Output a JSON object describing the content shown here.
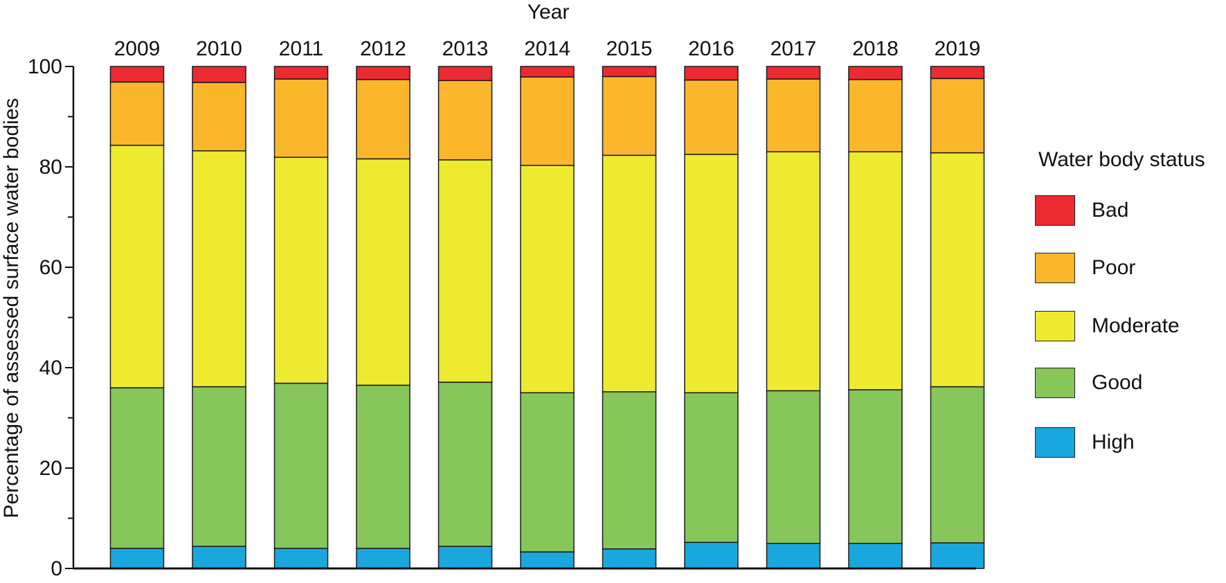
{
  "chart_data": {
    "type": "bar",
    "stacked": true,
    "title": "Year",
    "xlabel": "Year",
    "ylabel": "Percentage of assessed surface water bodies",
    "ylim": [
      0,
      100
    ],
    "yticks": [
      0,
      20,
      40,
      60,
      80,
      100
    ],
    "x_axis_position": "top",
    "categories": [
      "2009",
      "2010",
      "2011",
      "2012",
      "2013",
      "2014",
      "2015",
      "2016",
      "2017",
      "2018",
      "2019"
    ],
    "legend_title": "Water body status",
    "legend_position": "right",
    "series": [
      {
        "name": "High",
        "color": "#1aa7de",
        "values": [
          4.0,
          4.4,
          4.0,
          4.0,
          4.4,
          3.3,
          3.9,
          5.2,
          5.0,
          5.0,
          5.1
        ]
      },
      {
        "name": "Good",
        "color": "#86c65b",
        "values": [
          32.0,
          31.8,
          32.9,
          32.5,
          32.7,
          31.7,
          31.3,
          29.8,
          30.4,
          30.6,
          31.1
        ]
      },
      {
        "name": "Moderate",
        "color": "#eeea2f",
        "values": [
          48.3,
          47.0,
          45.0,
          45.1,
          44.3,
          45.3,
          47.1,
          47.5,
          47.6,
          47.4,
          46.6
        ]
      },
      {
        "name": "Poor",
        "color": "#fbb72c",
        "values": [
          12.6,
          13.6,
          15.6,
          15.8,
          15.8,
          17.6,
          15.7,
          14.8,
          14.5,
          14.4,
          14.8
        ]
      },
      {
        "name": "Bad",
        "color": "#ec2a31",
        "values": [
          3.1,
          3.2,
          2.5,
          2.6,
          2.8,
          2.1,
          2.0,
          2.7,
          2.5,
          2.6,
          2.4
        ]
      }
    ]
  }
}
